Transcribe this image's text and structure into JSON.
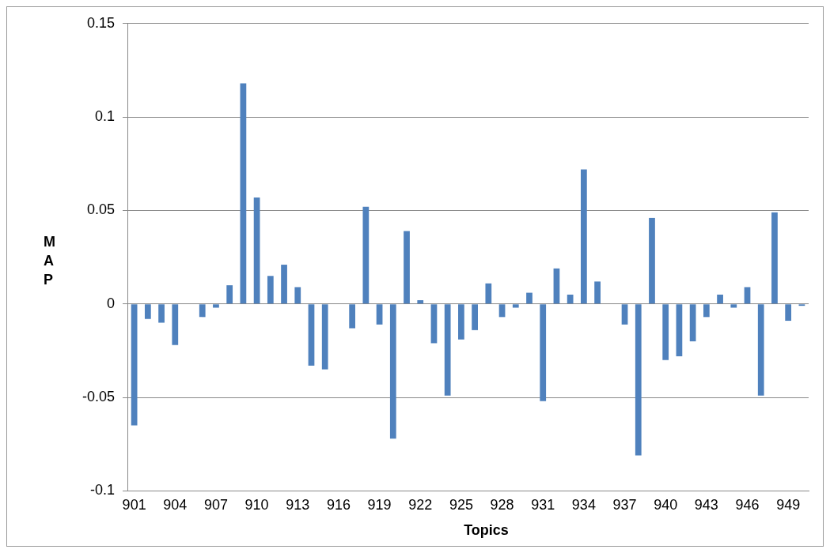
{
  "chart_data": {
    "type": "bar",
    "xlabel": "Topics",
    "ylabel": "MAP",
    "categories": [
      "901",
      null,
      null,
      "904",
      null,
      null,
      "907",
      null,
      null,
      "910",
      null,
      null,
      "913",
      null,
      null,
      "916",
      null,
      null,
      "919",
      null,
      null,
      "922",
      null,
      null,
      "925",
      null,
      null,
      "928",
      null,
      null,
      "931",
      null,
      null,
      "934",
      null,
      null,
      "937",
      null,
      null,
      "940",
      null,
      null,
      "943",
      null,
      null,
      "946",
      null,
      null,
      "949",
      null
    ],
    "values": [
      -0.065,
      -0.008,
      -0.01,
      -0.022,
      0,
      -0.007,
      -0.002,
      0.01,
      0.118,
      0.057,
      0.015,
      0.021,
      0.009,
      -0.033,
      -0.035,
      0,
      -0.013,
      0.052,
      -0.011,
      -0.072,
      0.039,
      0.002,
      -0.021,
      -0.049,
      -0.019,
      -0.014,
      0.011,
      -0.007,
      -0.002,
      0.006,
      -0.052,
      0.019,
      0.005,
      0.072,
      0.012,
      0,
      -0.011,
      -0.081,
      0.046,
      -0.03,
      -0.028,
      -0.02,
      -0.007,
      0.005,
      -0.002,
      0.009,
      -0.049,
      0.049,
      -0.009,
      -0.001
    ],
    "color": "#4f81bd",
    "ylim": [
      -0.1,
      0.15
    ],
    "yticks": [
      -0.1,
      -0.05,
      0,
      0.05,
      0.1,
      0.15
    ],
    "grid": "y",
    "legend": false
  }
}
